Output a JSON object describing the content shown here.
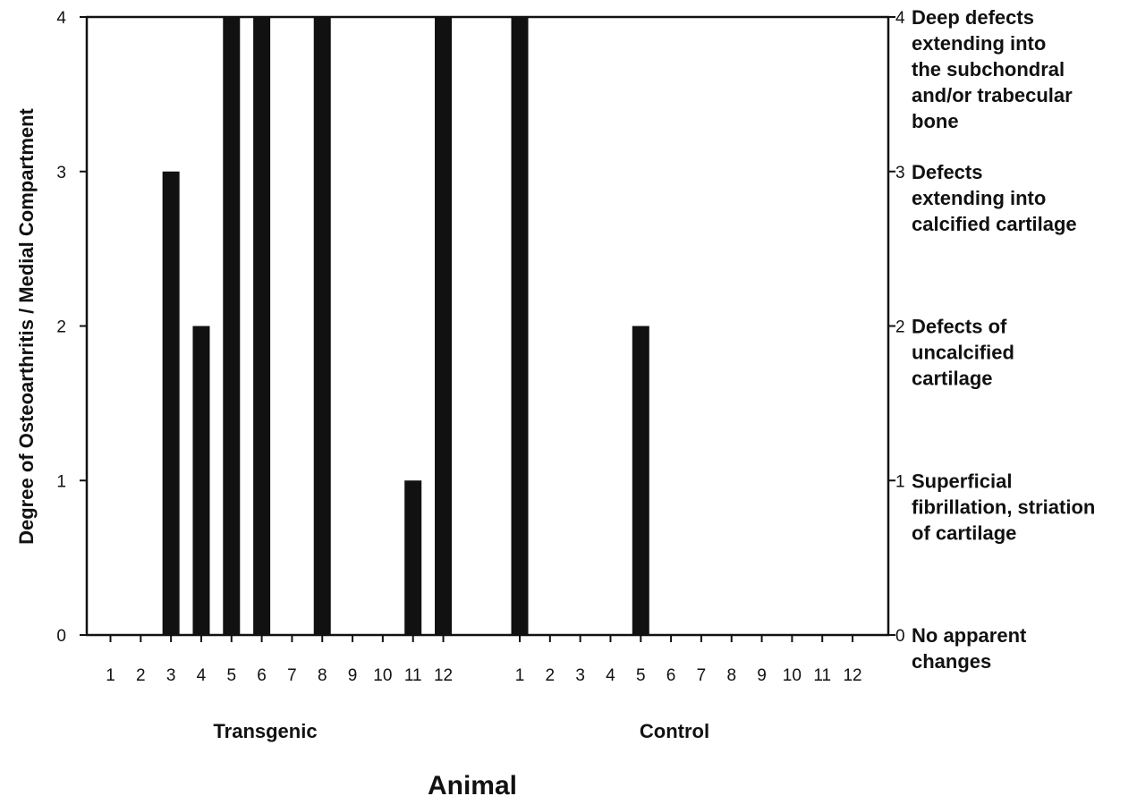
{
  "chart_data": {
    "type": "bar",
    "ylabel": "Degree of Osteoarthritis / Medial Compartment",
    "xlabel": "Animal",
    "ylim": [
      0,
      4
    ],
    "yticks": [
      0,
      1,
      2,
      3,
      4
    ],
    "grid": false,
    "color": "#111111",
    "groups": [
      {
        "name": "Transgenic",
        "categories": [
          "1",
          "2",
          "3",
          "4",
          "5",
          "6",
          "7",
          "8",
          "9",
          "10",
          "11",
          "12"
        ],
        "values": [
          0,
          0,
          3,
          2,
          4,
          4,
          0,
          4,
          0,
          0,
          1,
          4
        ]
      },
      {
        "name": "Control",
        "categories": [
          "1",
          "2",
          "3",
          "4",
          "5",
          "6",
          "7",
          "8",
          "9",
          "10",
          "11",
          "12"
        ],
        "values": [
          4,
          0,
          0,
          0,
          2,
          0,
          0,
          0,
          0,
          0,
          0,
          0
        ]
      }
    ],
    "right_axis_labels": [
      {
        "value": 4,
        "text": [
          "Deep defects",
          "extending into",
          "the subchondral",
          "and/or trabecular",
          "bone"
        ]
      },
      {
        "value": 3,
        "text": [
          "Defects",
          "extending  into",
          "calcified cartilage"
        ]
      },
      {
        "value": 2,
        "text": [
          "Defects of",
          "uncalcified",
          "cartilage"
        ]
      },
      {
        "value": 1,
        "text": [
          "Superficial",
          "fibrillation, striation",
          "of cartilage"
        ]
      },
      {
        "value": 0,
        "text": [
          "No apparent",
          "changes"
        ]
      }
    ]
  }
}
